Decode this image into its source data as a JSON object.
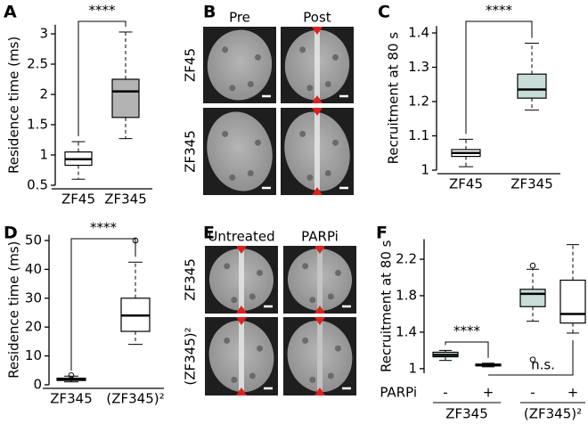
{
  "chart_data": [
    {
      "type": "box",
      "panel": "A",
      "ylabel": "Residence time (ms)",
      "categories": [
        "ZF45",
        "ZF345"
      ],
      "boxes": [
        {
          "whisker_low": 0.6,
          "q1": 0.83,
          "median": 0.93,
          "q3": 1.05,
          "whisker_high": 1.22,
          "outliers": []
        },
        {
          "whisker_low": 1.27,
          "q1": 1.62,
          "median": 2.05,
          "q3": 2.25,
          "whisker_high": 3.03,
          "outliers": []
        }
      ],
      "colors": [
        "#ffffff",
        "#b3b3b3"
      ],
      "ylim": [
        0.5,
        3.15
      ],
      "yticks": [
        0.5,
        1,
        1.5,
        2,
        2.5,
        3
      ],
      "significance": [
        "****"
      ]
    },
    {
      "type": "box",
      "panel": "C",
      "ylabel": "Recruitment at 80 s",
      "categories": [
        "ZF45",
        "ZF345"
      ],
      "boxes": [
        {
          "whisker_low": 1.01,
          "q1": 1.04,
          "median": 1.05,
          "q3": 1.06,
          "whisker_high": 1.09,
          "outliers": []
        },
        {
          "whisker_low": 1.175,
          "q1": 1.21,
          "median": 1.235,
          "q3": 1.28,
          "whisker_high": 1.37,
          "outliers": []
        }
      ],
      "colors": [
        "#ffffff",
        "#c8dcd8"
      ],
      "ylim": [
        1,
        1.42
      ],
      "yticks": [
        1,
        1.1,
        1.2,
        1.3,
        1.4
      ],
      "significance": [
        "****"
      ]
    },
    {
      "type": "box",
      "panel": "D",
      "ylabel": "Residence time (ms)",
      "categories": [
        "ZF345",
        "(ZF345)²"
      ],
      "boxes": [
        {
          "whisker_low": 1,
          "q1": 1.5,
          "median": 2,
          "q3": 2.3,
          "whisker_high": 3,
          "outliers": [
            3.3
          ]
        },
        {
          "whisker_low": 14,
          "q1": 18.5,
          "median": 24,
          "q3": 30,
          "whisker_high": 42.5,
          "outliers": [
            50
          ]
        }
      ],
      "colors": [
        "#ffffff",
        "#ffffff"
      ],
      "ylim": [
        0,
        52
      ],
      "yticks": [
        0,
        10,
        20,
        30,
        40,
        50
      ],
      "significance": [
        "****"
      ]
    },
    {
      "type": "box",
      "panel": "F",
      "ylabel": "Recruitment at 80 s",
      "categories": [
        "-",
        "+",
        "-",
        "+"
      ],
      "row_label": "PARPi",
      "groups": [
        "ZF345",
        "(ZF345)²"
      ],
      "boxes": [
        {
          "whisker_low": 1.09,
          "q1": 1.13,
          "median": 1.15,
          "q3": 1.18,
          "whisker_high": 1.2,
          "outliers": []
        },
        {
          "whisker_low": 1.02,
          "q1": 1.03,
          "median": 1.04,
          "q3": 1.05,
          "whisker_high": 1.06,
          "outliers": []
        },
        {
          "whisker_low": 1.52,
          "q1": 1.68,
          "median": 1.82,
          "q3": 1.87,
          "whisker_high": 2.09,
          "outliers": [
            2.13,
            1.1
          ]
        },
        {
          "whisker_low": 1.39,
          "q1": 1.5,
          "median": 1.6,
          "q3": 1.97,
          "whisker_high": 2.36,
          "outliers": []
        }
      ],
      "colors": [
        "#c8dcd8",
        "#ffffff",
        "#c8dcd8",
        "#ffffff"
      ],
      "ylim": [
        0.95,
        2.42
      ],
      "yticks": [
        1,
        1.4,
        1.8,
        2.2
      ],
      "significance": [
        "****",
        "n.s."
      ]
    }
  ],
  "image_panels": [
    {
      "panel": "B",
      "columns": [
        "Pre",
        "Post"
      ],
      "rows": [
        "ZF45",
        "ZF345"
      ]
    },
    {
      "panel": "E",
      "columns": [
        "Untreated",
        "PARPi"
      ],
      "rows": [
        "ZF345",
        "(ZF345)²"
      ]
    }
  ]
}
